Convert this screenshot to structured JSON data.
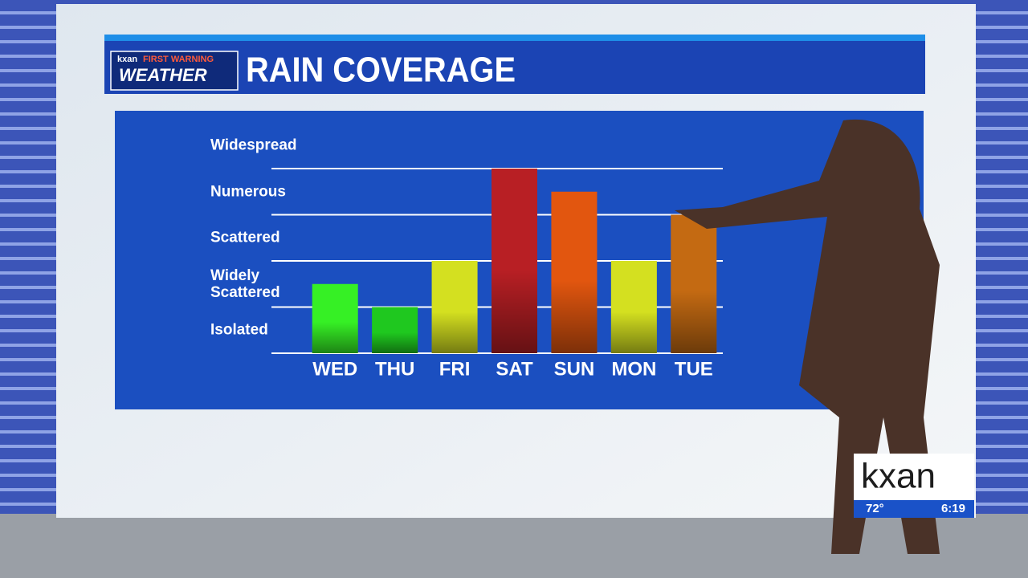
{
  "chart_data": {
    "type": "bar",
    "title": "RAIN COVERAGE",
    "categories": [
      "WED",
      "THU",
      "FRI",
      "SAT",
      "SUN",
      "MON",
      "TUE"
    ],
    "values": [
      1.5,
      1,
      2,
      4,
      3.5,
      2,
      3
    ],
    "colors": [
      "#36f025",
      "#1fc81f",
      "#d4e020",
      "#b81f24",
      "#e2560f",
      "#d4e020",
      "#c46a12"
    ],
    "ylim": [
      0,
      5
    ],
    "gridlines": [
      0,
      1,
      2,
      3,
      4
    ],
    "yticks": [
      {
        "value": 0.5,
        "label": "Isolated"
      },
      {
        "value": 1.5,
        "label": "Widely Scattered"
      },
      {
        "value": 2.5,
        "label": "Scattered"
      },
      {
        "value": 3.5,
        "label": "Numerous"
      },
      {
        "value": 4.5,
        "label": "Widespread"
      }
    ],
    "grid": true
  },
  "logo": {
    "station": "kxan",
    "line1": "FIRST WARNING",
    "line2": "WEATHER"
  },
  "bug": {
    "station": "kxan",
    "temperature": "72°",
    "time": "6:19"
  }
}
